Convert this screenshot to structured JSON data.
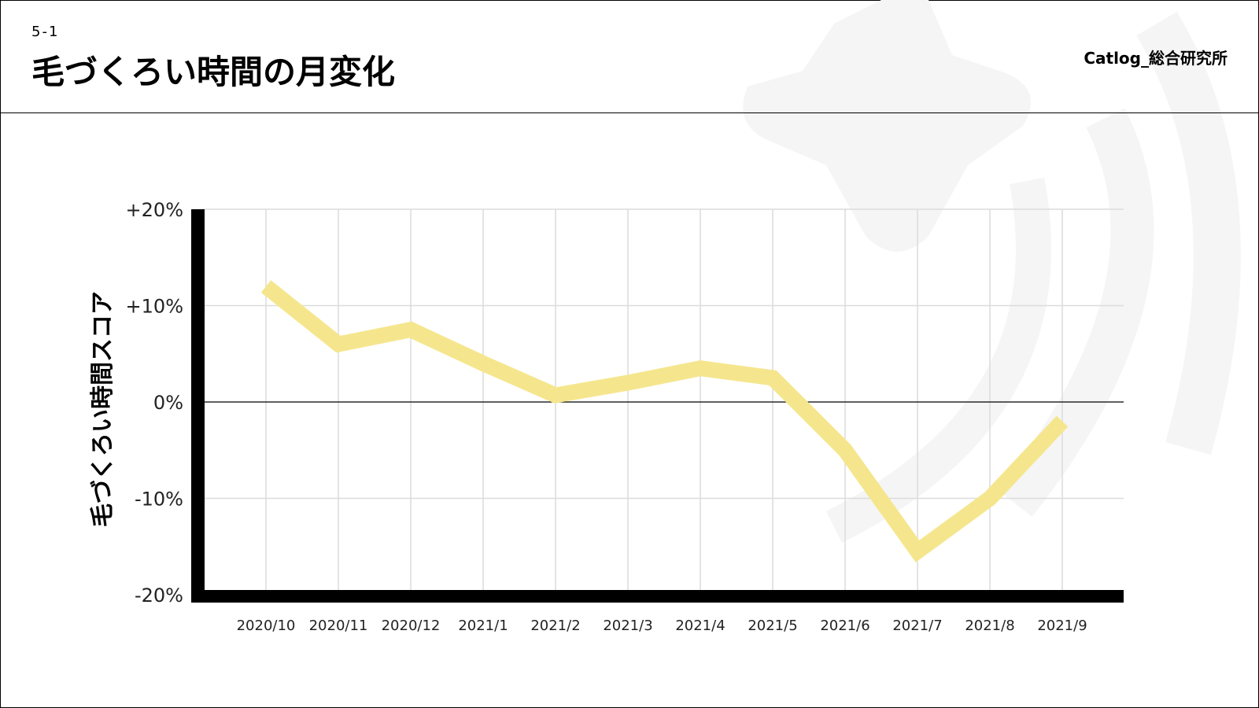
{
  "header": {
    "section_number": "5-1",
    "title": "毛づくろい時間の月変化",
    "brand": "Catlog_総合研究所"
  },
  "colors": {
    "line": "#f5e68e",
    "axis": "#000000",
    "grid": "#dcdcdc",
    "decoration": "#f5f5f5"
  },
  "chart_data": {
    "type": "line",
    "categories": [
      "2020/10",
      "2020/11",
      "2020/12",
      "2021/1",
      "2021/2",
      "2021/3",
      "2021/4",
      "2021/5",
      "2021/6",
      "2021/7",
      "2021/8",
      "2021/9"
    ],
    "series": [
      {
        "values": [
          12,
          6,
          7.5,
          4,
          0.7,
          2,
          3.5,
          2.5,
          -5,
          -15.5,
          -10,
          -2
        ]
      }
    ],
    "ylabel": "毛づくろい時間スコア",
    "xlabel": "",
    "ylim": [
      -20,
      20
    ],
    "yticks": [
      20,
      10,
      0,
      -10,
      -20
    ],
    "ytick_labels": [
      "+20%",
      "+10%",
      "0%",
      "-10%",
      "-20%"
    ],
    "grid": true,
    "legend": "none"
  }
}
